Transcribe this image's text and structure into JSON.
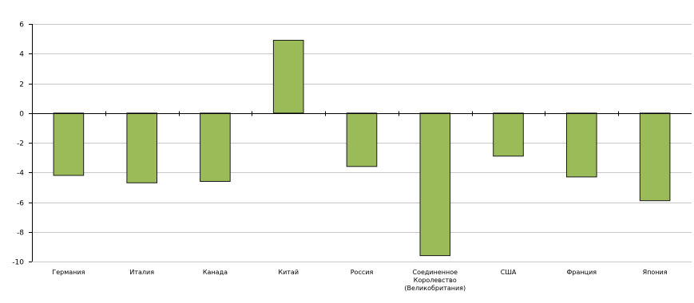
{
  "chart_data": {
    "type": "bar",
    "categories": [
      [
        "Германия"
      ],
      [
        "Италия"
      ],
      [
        "Канада"
      ],
      [
        "Китай"
      ],
      [
        "Россия"
      ],
      [
        "Соединенное",
        "Королевство",
        "(Великобритания)"
      ],
      [
        "США"
      ],
      [
        "Франция"
      ],
      [
        "Япония"
      ]
    ],
    "values": [
      -4.2,
      -4.7,
      -4.6,
      4.9,
      -3.6,
      -9.6,
      -2.9,
      -4.3,
      -5.9
    ],
    "ylim": [
      -10,
      6
    ],
    "yticks": [
      6,
      4,
      2,
      0,
      -2,
      -4,
      -6,
      -8,
      -10
    ],
    "grid": true,
    "legend": "none",
    "colors": {
      "bar_fill": "#9bbb59",
      "bar_stroke": "#1a1a1a",
      "grid": "#c8c8c8",
      "axis": "#000000"
    }
  }
}
